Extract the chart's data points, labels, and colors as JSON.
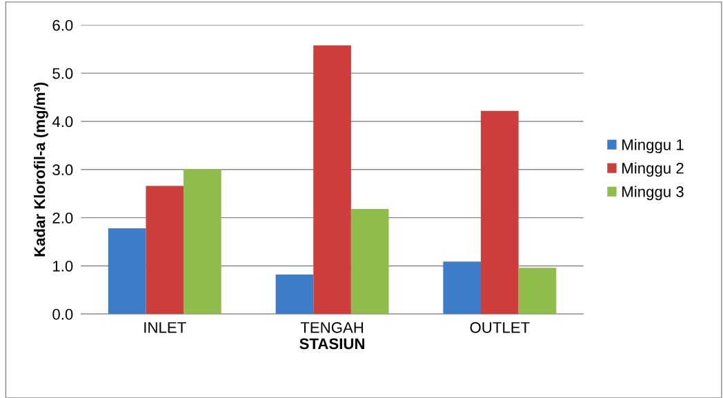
{
  "chart_data": {
    "type": "bar",
    "xlabel": "STASIUN",
    "ylabel": "Kadar Klorofil-a (mg/m³)",
    "categories": [
      "INLET",
      "TENGAH",
      "OUTLET"
    ],
    "series": [
      {
        "name": "Minggu 1",
        "color": "#3d7cc9",
        "values": [
          1.78,
          0.82,
          1.09
        ]
      },
      {
        "name": "Minggu 2",
        "color": "#cc3d3b",
        "values": [
          2.66,
          5.58,
          4.22
        ]
      },
      {
        "name": "Minggu 3",
        "color": "#8fbc4a",
        "values": [
          3.01,
          2.18,
          0.96
        ]
      }
    ],
    "ylim": [
      0,
      6
    ],
    "yticks": [
      {
        "value": 0,
        "label": "0.0"
      },
      {
        "value": 1,
        "label": "1.0"
      },
      {
        "value": 2,
        "label": "2.0"
      },
      {
        "value": 3,
        "label": "3.0"
      },
      {
        "value": 4,
        "label": "4.0"
      },
      {
        "value": 5,
        "label": "5.0"
      },
      {
        "value": 6,
        "label": "6.0"
      }
    ],
    "grid": "y",
    "legend": "right"
  }
}
